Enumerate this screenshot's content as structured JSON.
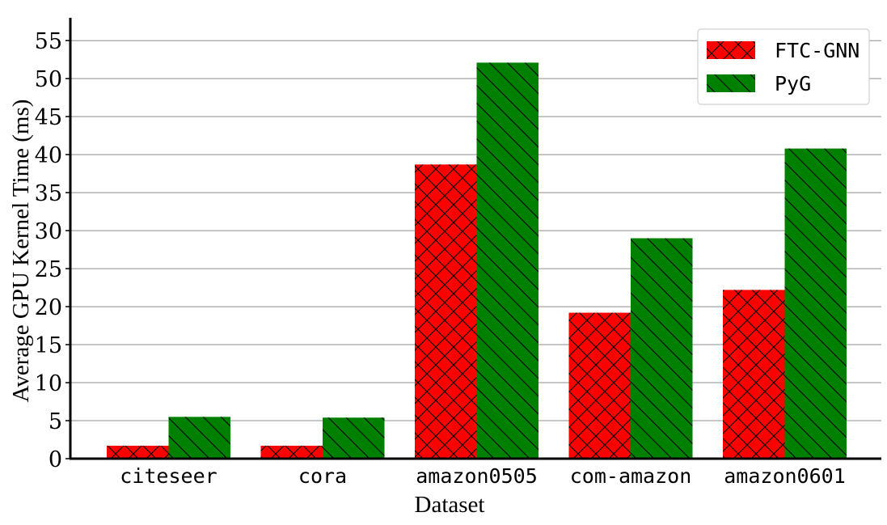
{
  "chart_data": {
    "type": "bar",
    "title": "",
    "xlabel": "Dataset",
    "ylabel": "Average GPU Kernel Time (ms)",
    "categories": [
      "citeseer",
      "cora",
      "amazon0505",
      "com-amazon",
      "amazon0601"
    ],
    "series": [
      {
        "name": "FTC-GNN",
        "values": [
          1.7,
          1.7,
          38.7,
          19.2,
          22.2
        ],
        "color": "#ff0000",
        "hatch": "cross-hatch"
      },
      {
        "name": "PyG",
        "values": [
          5.5,
          5.4,
          52.1,
          29.0,
          40.8
        ],
        "color": "#008000",
        "hatch": "backslash"
      }
    ],
    "ylim": [
      0,
      58
    ],
    "yticks": [
      0,
      5,
      10,
      15,
      20,
      25,
      30,
      35,
      40,
      45,
      50,
      55
    ],
    "grid": "horizontal",
    "legend_position": "top-right"
  }
}
